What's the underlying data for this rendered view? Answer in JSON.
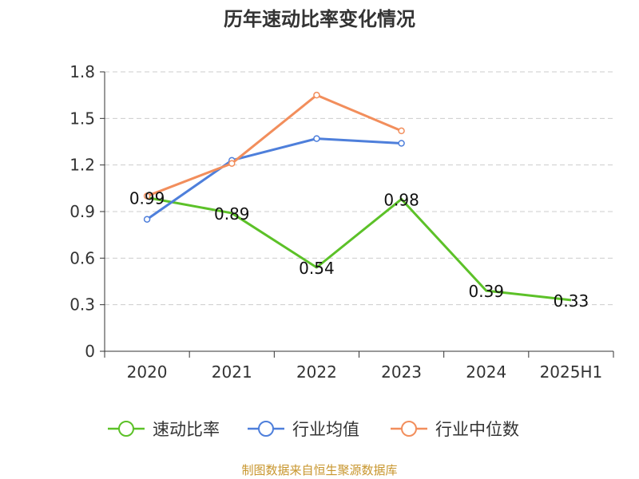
{
  "chart_data": {
    "type": "line",
    "title": "历年速动比率变化情况",
    "categories": [
      "2020",
      "2021",
      "2022",
      "2023",
      "2024",
      "2025H1"
    ],
    "ylim": [
      0,
      1.8
    ],
    "yticks": [
      "0",
      "0.3",
      "0.6",
      "0.9",
      "1.2",
      "1.5",
      "1.8"
    ],
    "grid": true,
    "legend_position": "bottom",
    "series": [
      {
        "name": "速动比率",
        "color": "#5cc128",
        "values": [
          0.99,
          0.89,
          0.54,
          0.98,
          0.39,
          0.33
        ],
        "labels": [
          "0.99",
          "0.89",
          "0.54",
          "0.98",
          "0.39",
          "0.33"
        ],
        "markers": false
      },
      {
        "name": "行业均值",
        "color": "#4e7fdb",
        "values": [
          0.85,
          1.23,
          1.37,
          1.34,
          null,
          null
        ],
        "markers": true
      },
      {
        "name": "行业中位数",
        "color": "#f28e5c",
        "values": [
          1.0,
          1.21,
          1.65,
          1.42,
          null,
          null
        ],
        "markers": true
      }
    ],
    "source": "制图数据来自恒生聚源数据库"
  }
}
